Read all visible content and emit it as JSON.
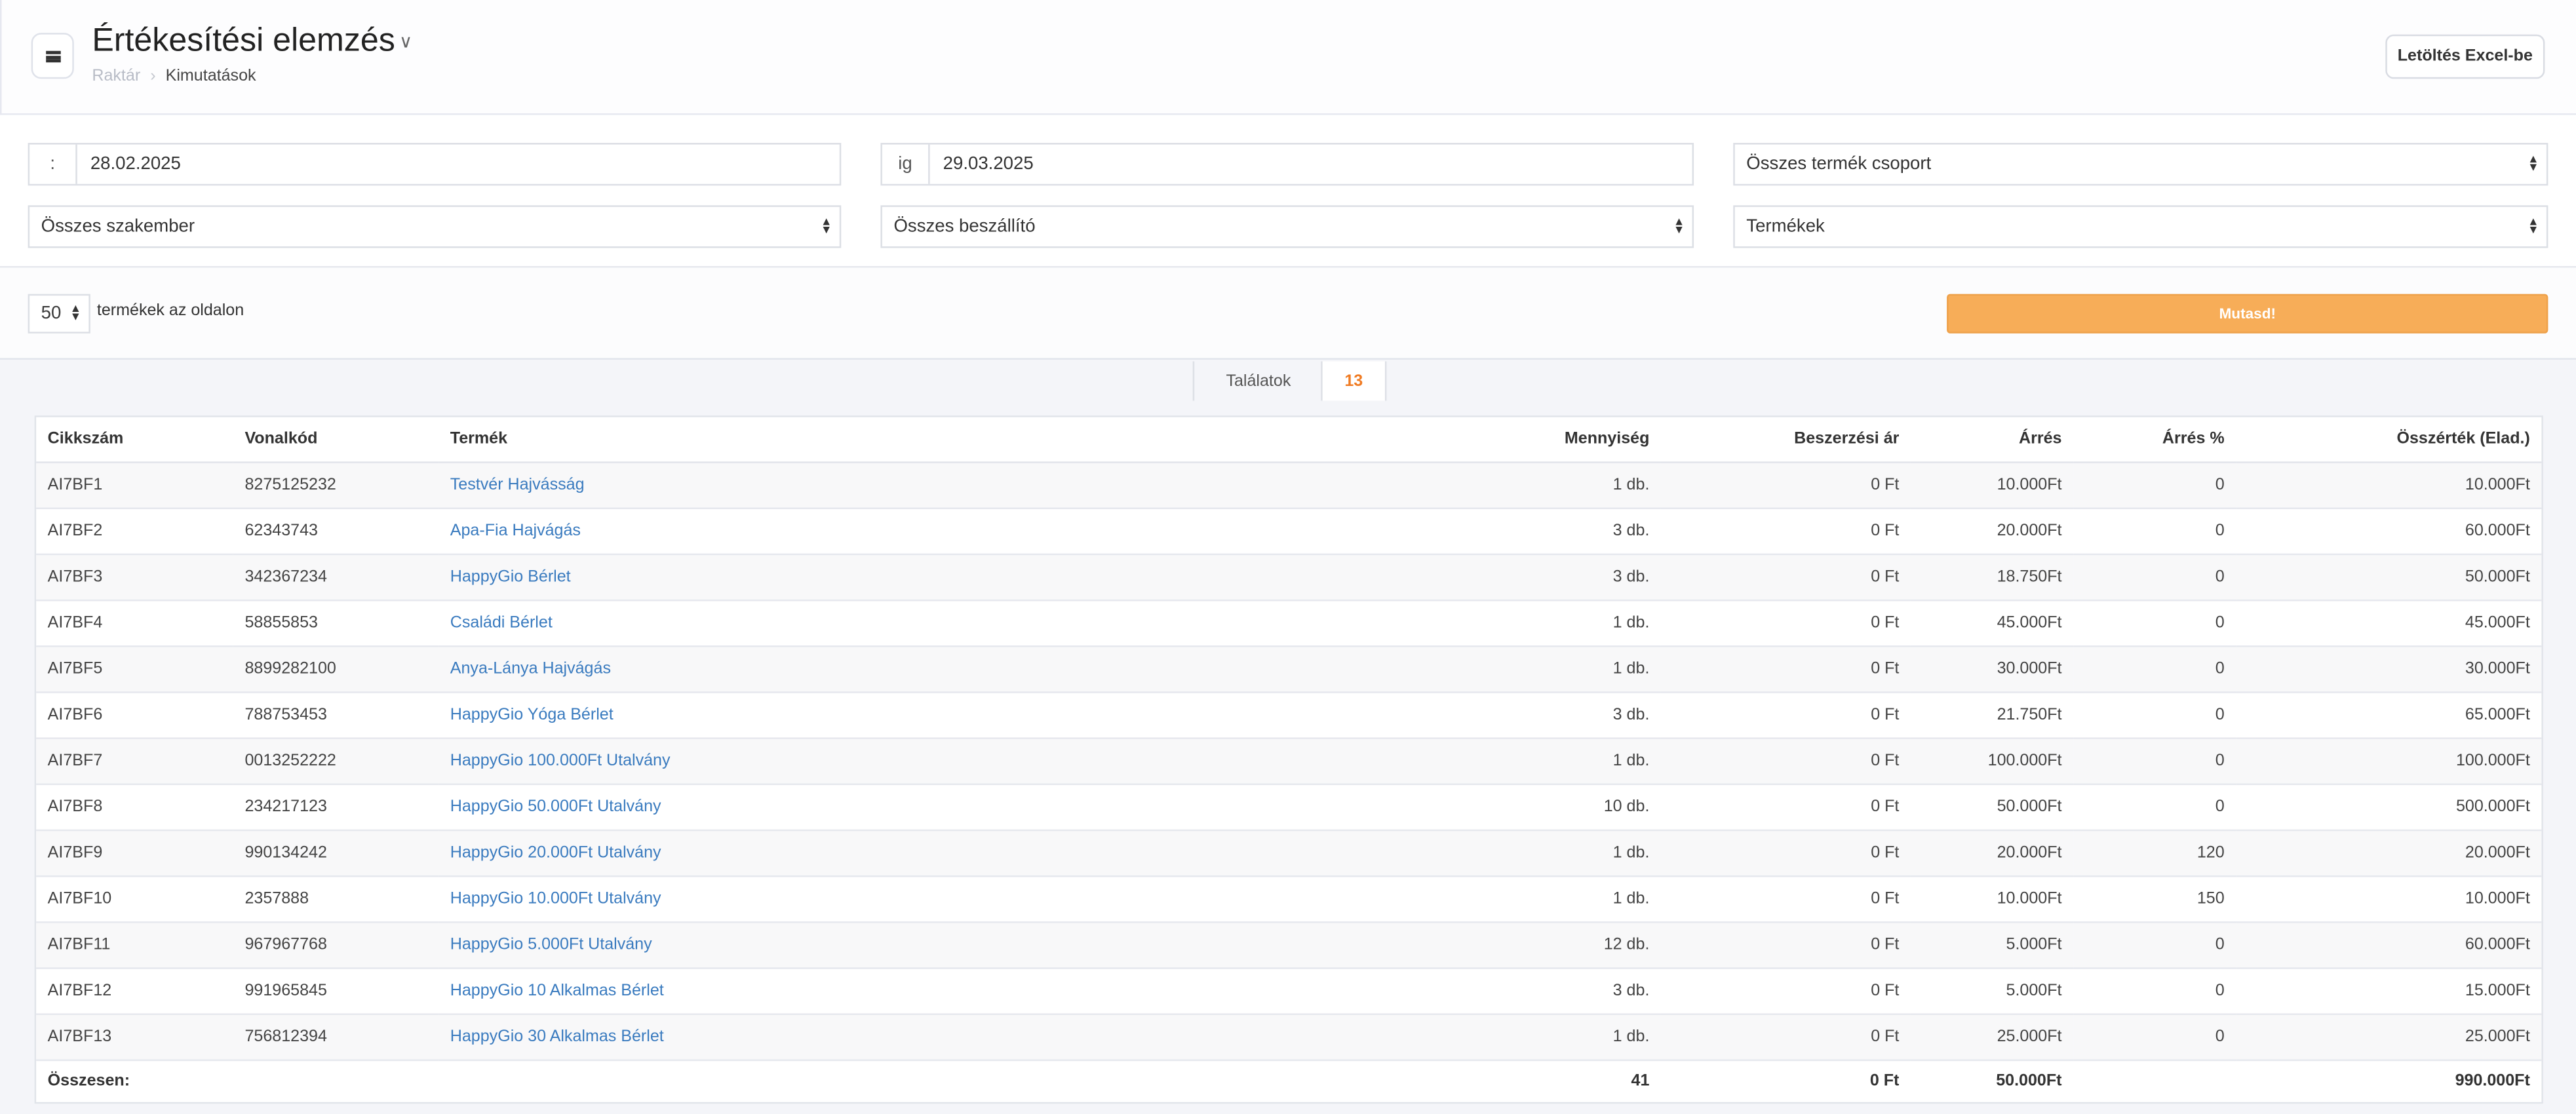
{
  "header": {
    "title": "Értékesítési elemzés",
    "breadcrumb": [
      "Raktár",
      "Kimutatások"
    ],
    "excel_button": "Letöltés Excel-be"
  },
  "filters": {
    "from_prefix": ":",
    "from_date": "28.02.2025",
    "to_prefix": "ig",
    "to_date": "29.03.2025",
    "product_group": "Összes termék csoport",
    "specialist": "Összes szakember",
    "supplier": "Összes beszállító",
    "products": "Termékek"
  },
  "pagination": {
    "per_page": "50",
    "per_page_label": "termékek az oldalon"
  },
  "show_button": "Mutasd!",
  "results": {
    "label": "Találatok",
    "count": "13"
  },
  "colors": {
    "accent": "#f7ad58",
    "count": "#f07b22",
    "link": "#3a7bbf"
  },
  "table": {
    "columns": [
      "Cikkszám",
      "Vonalkód",
      "Termék",
      "Mennyiség",
      "Beszerzési ár",
      "Árrés",
      "Árrés %",
      "Összérték (Elad.)"
    ],
    "rows": [
      [
        "AI7BF1",
        "8275125232",
        "Testvér Hajvásság",
        "1 db.",
        "0 Ft",
        "10.000Ft",
        "0",
        "10.000Ft"
      ],
      [
        "AI7BF2",
        "62343743",
        "Apa-Fia Hajvágás",
        "3 db.",
        "0 Ft",
        "20.000Ft",
        "0",
        "60.000Ft"
      ],
      [
        "AI7BF3",
        "342367234",
        "HappyGio Bérlet",
        "3 db.",
        "0 Ft",
        "18.750Ft",
        "0",
        "50.000Ft"
      ],
      [
        "AI7BF4",
        "58855853",
        "Családi Bérlet",
        "1 db.",
        "0 Ft",
        "45.000Ft",
        "0",
        "45.000Ft"
      ],
      [
        "AI7BF5",
        "8899282100",
        "Anya-Lánya Hajvágás",
        "1 db.",
        "0 Ft",
        "30.000Ft",
        "0",
        "30.000Ft"
      ],
      [
        "AI7BF6",
        "788753453",
        "HappyGio Yóga Bérlet",
        "3 db.",
        "0 Ft",
        "21.750Ft",
        "0",
        "65.000Ft"
      ],
      [
        "AI7BF7",
        "0013252222",
        "HappyGio 100.000Ft Utalvány",
        "1 db.",
        "0 Ft",
        "100.000Ft",
        "0",
        "100.000Ft"
      ],
      [
        "AI7BF8",
        "234217123",
        "HappyGio 50.000Ft Utalvány",
        "10 db.",
        "0 Ft",
        "50.000Ft",
        "0",
        "500.000Ft"
      ],
      [
        "AI7BF9",
        "990134242",
        "HappyGio 20.000Ft Utalvány",
        "1 db.",
        "0 Ft",
        "20.000Ft",
        "120",
        "20.000Ft"
      ],
      [
        "AI7BF10",
        "2357888",
        "HappyGio 10.000Ft Utalvány",
        "1 db.",
        "0 Ft",
        "10.000Ft",
        "150",
        "10.000Ft"
      ],
      [
        "AI7BF11",
        "967967768",
        "HappyGio 5.000Ft Utalvány",
        "12 db.",
        "0 Ft",
        "5.000Ft",
        "0",
        "60.000Ft"
      ],
      [
        "AI7BF12",
        "991965845",
        "HappyGio 10 Alkalmas Bérlet",
        "3 db.",
        "0 Ft",
        "5.000Ft",
        "0",
        "15.000Ft"
      ],
      [
        "AI7BF13",
        "756812394",
        "HappyGio 30 Alkalmas Bérlet",
        "1 db.",
        "0 Ft",
        "25.000Ft",
        "0",
        "25.000Ft"
      ]
    ],
    "total": {
      "label": "Összesen:",
      "quantity": "41",
      "purchase": "0 Ft",
      "margin": "50.000Ft",
      "value": "990.000Ft"
    }
  }
}
